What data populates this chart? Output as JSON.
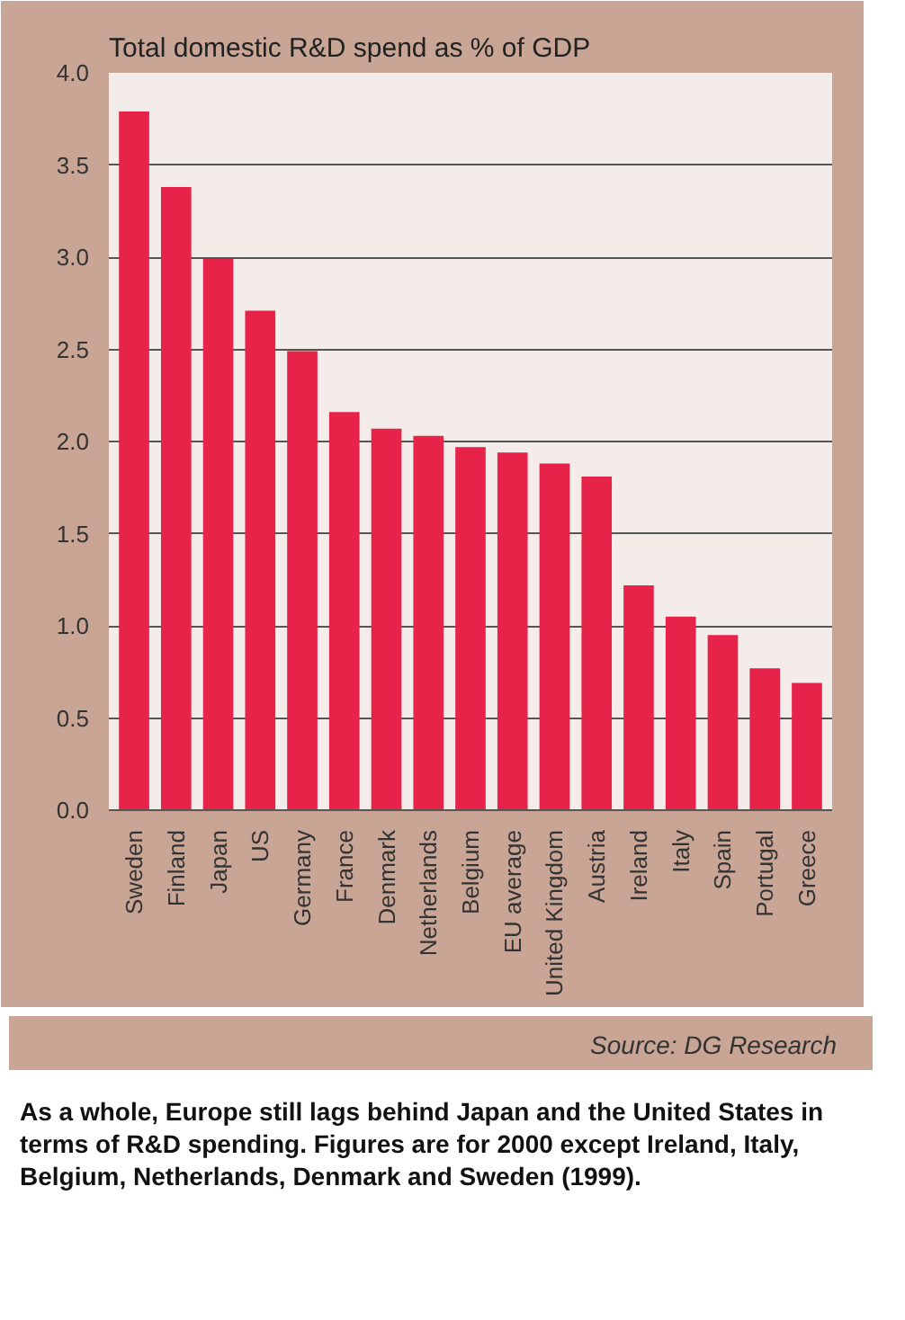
{
  "chart_data": {
    "type": "bar",
    "title": "Total domestic R&D spend as % of GDP",
    "categories": [
      "Sweden",
      "Finland",
      "Japan",
      "US",
      "Germany",
      "France",
      "Denmark",
      "Netherlands",
      "Belgium",
      "EU average",
      "United Kingdom",
      "Austria",
      "Ireland",
      "Italy",
      "Spain",
      "Portugal",
      "Greece"
    ],
    "values": [
      3.79,
      3.38,
      2.99,
      2.71,
      2.49,
      2.16,
      2.07,
      2.03,
      1.97,
      1.94,
      1.88,
      1.81,
      1.22,
      1.05,
      0.95,
      0.77,
      0.69
    ],
    "color": "#e8234a",
    "ylim": [
      0,
      4
    ],
    "yticks": [
      {
        "value": 0,
        "label": "0.0"
      },
      {
        "value": 0.5,
        "label": "0.5"
      },
      {
        "value": 1,
        "label": "1.0"
      },
      {
        "value": 1.5,
        "label": "1.5"
      },
      {
        "value": 2,
        "label": "2.0"
      },
      {
        "value": 2.5,
        "label": "2.5"
      },
      {
        "value": 3,
        "label": "3.0"
      },
      {
        "value": 3.5,
        "label": "3.5"
      },
      {
        "value": 4,
        "label": "4.0"
      }
    ],
    "grid": "y",
    "annotations": [
      "Source: DG Research",
      "As a whole, Europe still lags behind Japan and the United States in terms of R&D spending. Figures are for 2000 except Ireland, Italy, Belgium, Netherlands, Denmark and Sweden (1999)."
    ]
  }
}
